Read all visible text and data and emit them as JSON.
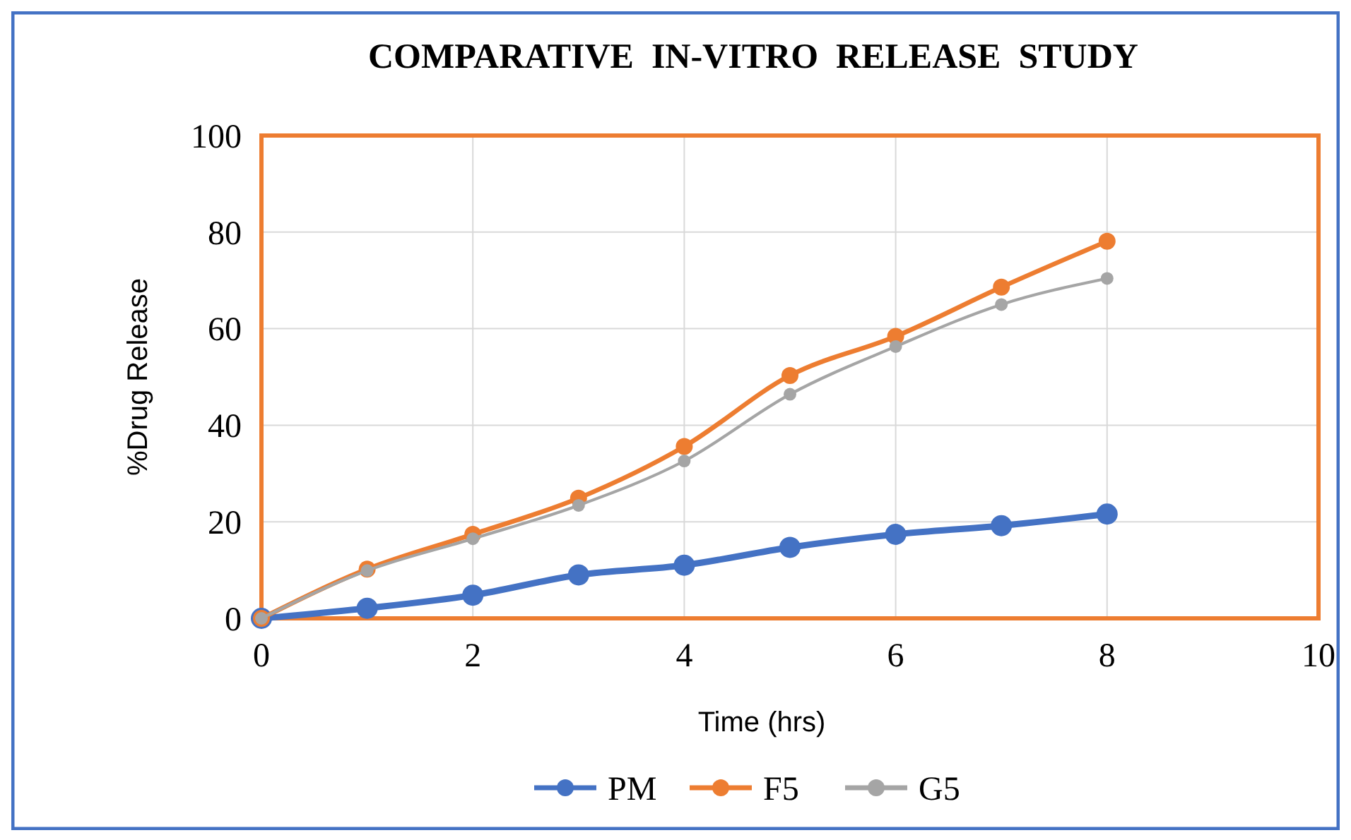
{
  "chart_data": {
    "type": "line",
    "title": "COMPARATIVE  IN-VITRO  RELEASE  STUDY",
    "xlabel": "Time (hrs)",
    "ylabel": "%Drug Release",
    "x": [
      0,
      1,
      2,
      3,
      4,
      5,
      6,
      7,
      8
    ],
    "series": [
      {
        "name": "PM",
        "color": "#4472c4",
        "values": [
          0,
          2.1,
          4.8,
          9,
          11,
          14.7,
          17.4,
          19.2,
          21.6
        ]
      },
      {
        "name": "F5",
        "color": "#ed7d31",
        "values": [
          0,
          10.2,
          17.4,
          24.9,
          35.6,
          50.3,
          58.4,
          68.6,
          78.1
        ]
      },
      {
        "name": "G5",
        "color": "#a5a5a5",
        "values": [
          0,
          9.9,
          16.5,
          23.4,
          32.6,
          46.4,
          56.3,
          65,
          70.4
        ]
      }
    ],
    "xlim": [
      0,
      10
    ],
    "xticks": [
      0,
      2,
      4,
      6,
      8,
      10
    ],
    "ylim": [
      0,
      100
    ],
    "yticks": [
      0,
      20,
      40,
      60,
      80,
      100
    ],
    "grid": true,
    "legend": "bottom",
    "marker": "circle",
    "line_style": "solid"
  }
}
